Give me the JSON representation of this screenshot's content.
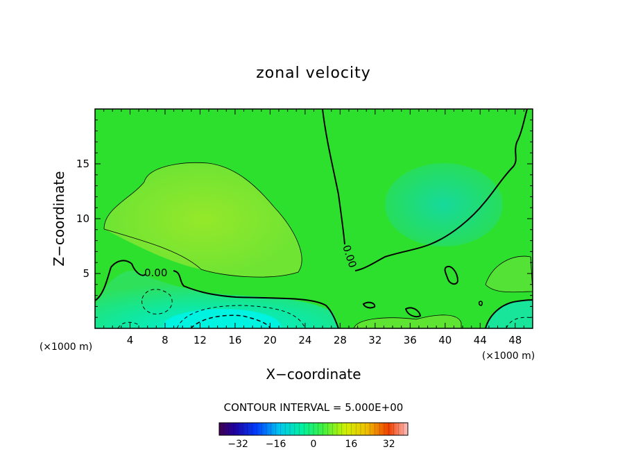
{
  "chart_data": {
    "type": "heatmap",
    "title": "zonal velocity",
    "xlabel": "X−coordinate",
    "ylabel": "Z−coordinate",
    "x_unit_left": "(×1000 m)",
    "x_unit_right": "(×1000 m)",
    "xlim": [
      0,
      50
    ],
    "ylim": [
      0,
      20
    ],
    "x_ticks": [
      4,
      8,
      12,
      16,
      20,
      24,
      28,
      32,
      36,
      40,
      44,
      48
    ],
    "y_ticks": [
      5,
      10,
      15
    ],
    "contour_interval_text": "CONTOUR INTERVAL = 5.000E+00",
    "zero_contour_labels": [
      "0.00",
      "0.00"
    ],
    "colorbar": {
      "min": -40,
      "max": 40,
      "tick_values": [
        -32,
        -16,
        0,
        16,
        32
      ],
      "tick_labels": [
        "−32",
        "−16",
        "0",
        "16",
        "32"
      ]
    },
    "colors": {
      "background_field": "#2ee02e",
      "positive_region": "#88e830",
      "negative_region": "#10e8a0",
      "strong_negative_region": "#00f0d8"
    }
  }
}
